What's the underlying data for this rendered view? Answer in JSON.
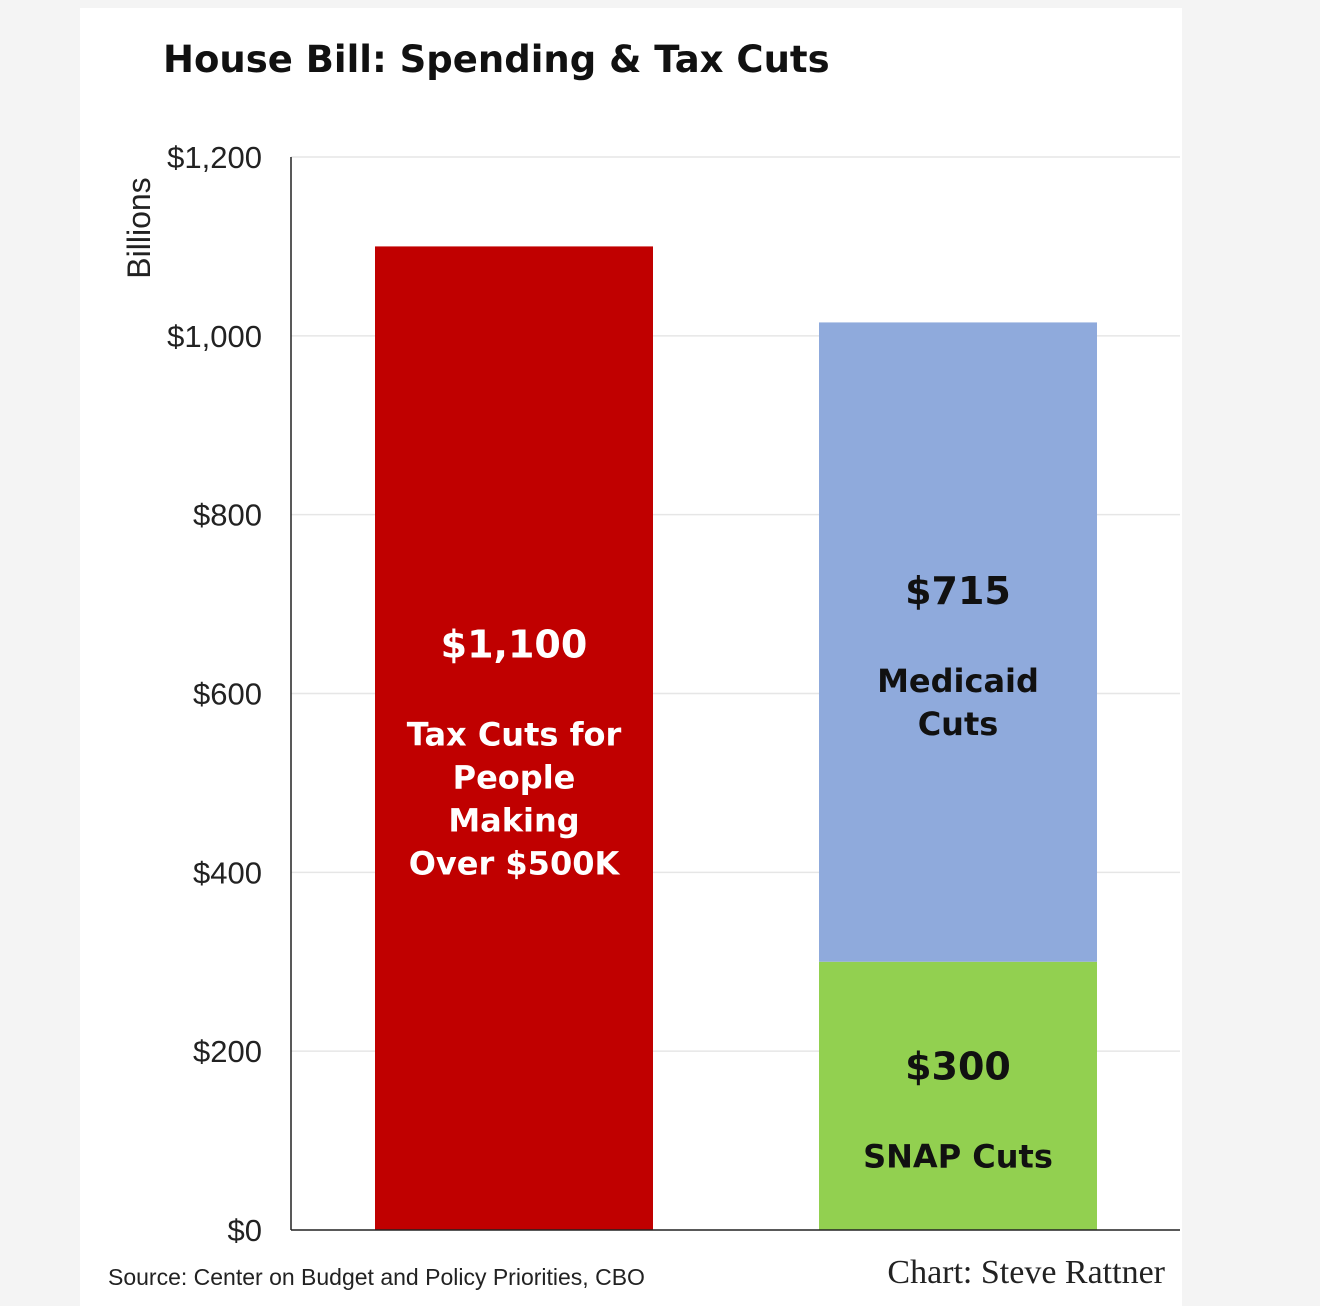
{
  "chart_data": {
    "type": "bar",
    "stacked": true,
    "title": "House Bill: Spending & Tax Cuts",
    "ylabel": "Billions",
    "ylim": [
      0,
      1200
    ],
    "yticks": [
      "$0",
      "$200",
      "$400",
      "$600",
      "$800",
      "$1,000",
      "$1,200"
    ],
    "ytick_values": [
      0,
      200,
      400,
      600,
      800,
      1000,
      1200
    ],
    "grid": true,
    "bars": [
      {
        "segments": [
          {
            "value": 1100,
            "value_label": "$1,100",
            "label": "Tax Cuts for People Making Over $500K",
            "label_lines": [
              "Tax Cuts for",
              "People",
              "Making",
              "Over $500K"
            ],
            "color": "#c00000",
            "text_color": "#ffffff"
          }
        ]
      },
      {
        "segments": [
          {
            "value": 300,
            "value_label": "$300",
            "label": "SNAP Cuts",
            "label_lines": [
              "SNAP Cuts"
            ],
            "color": "#92d050",
            "text_color": "#111111"
          },
          {
            "value": 715,
            "value_label": "$715",
            "label": "Medicaid Cuts",
            "label_lines": [
              "Medicaid",
              "Cuts"
            ],
            "color": "#8faadc",
            "text_color": "#111111"
          }
        ]
      }
    ]
  },
  "footer": {
    "source": "Source: Center on Budget and Policy Priorities, CBO",
    "credit": "Chart: Steve Rattner"
  }
}
